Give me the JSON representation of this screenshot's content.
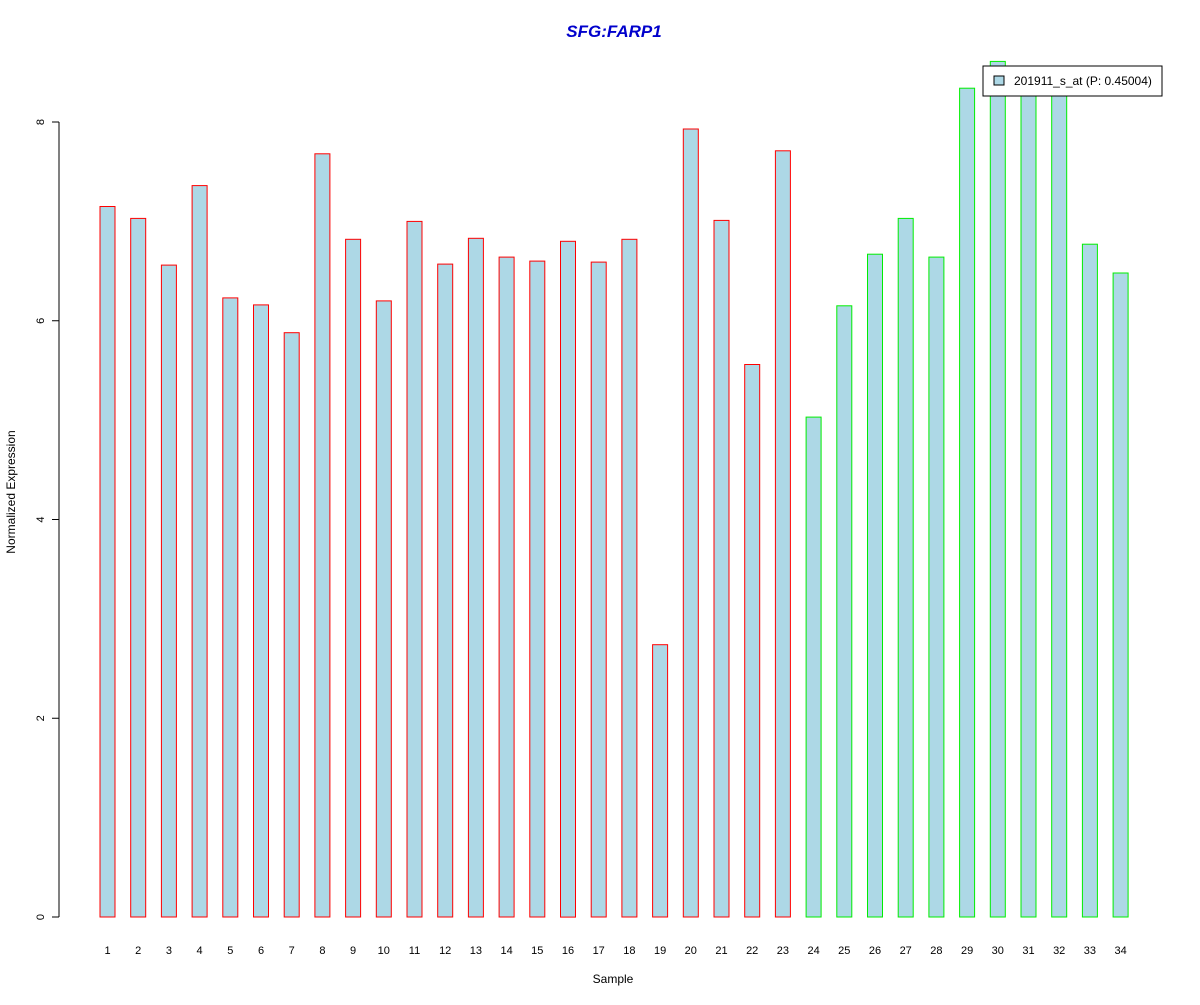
{
  "colors": {
    "title": "#0000cc",
    "bar_fill": "#add8e6",
    "group1_border": "#ff0000",
    "group2_border": "#00ee00",
    "axis": "#000000"
  },
  "chart_data": {
    "type": "bar",
    "title": "SFG:FARP1",
    "xlabel": "Sample",
    "ylabel": "Normalized Expression",
    "ylim": [
      0,
      8.6
    ],
    "yticks": [
      0,
      2,
      4,
      6,
      8
    ],
    "grid": false,
    "legend_placement": "top-right",
    "categories": [
      "1",
      "2",
      "3",
      "4",
      "5",
      "6",
      "7",
      "8",
      "9",
      "10",
      "11",
      "12",
      "13",
      "14",
      "15",
      "16",
      "17",
      "18",
      "19",
      "20",
      "21",
      "22",
      "23",
      "24",
      "25",
      "26",
      "27",
      "28",
      "29",
      "30",
      "31",
      "32",
      "33",
      "34"
    ],
    "series": [
      {
        "name": "201911_s_at (P: 0.45004)",
        "values": [
          7.15,
          7.03,
          6.56,
          7.36,
          6.23,
          6.16,
          5.88,
          7.68,
          6.82,
          6.2,
          7.0,
          6.57,
          6.83,
          6.64,
          6.6,
          6.8,
          6.59,
          6.82,
          2.74,
          7.93,
          7.01,
          5.56,
          7.71,
          5.03,
          6.15,
          6.67,
          7.03,
          6.64,
          8.34,
          8.61,
          8.34,
          8.34,
          6.77,
          6.48
        ]
      }
    ],
    "groups": [
      1,
      1,
      1,
      1,
      1,
      1,
      1,
      1,
      1,
      1,
      1,
      1,
      1,
      1,
      1,
      1,
      1,
      1,
      1,
      1,
      1,
      1,
      1,
      2,
      2,
      2,
      2,
      2,
      2,
      2,
      2,
      2,
      2,
      2
    ]
  }
}
